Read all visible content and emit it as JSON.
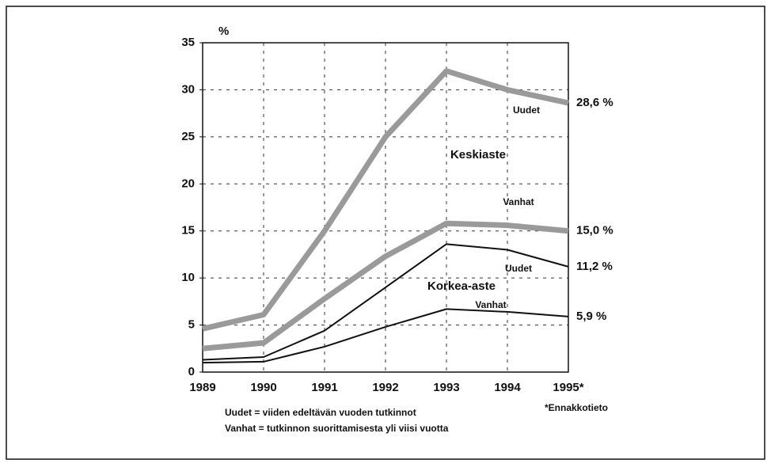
{
  "chart_data": {
    "type": "line",
    "y_unit": "%",
    "categories": [
      "1989",
      "1990",
      "1991",
      "1992",
      "1993",
      "1994",
      "1995*"
    ],
    "series": [
      {
        "name": "Uudet",
        "group": "Keskiaste",
        "color": "#9a9a9a",
        "values": [
          4.6,
          6.1,
          15,
          25,
          32,
          30,
          28.6
        ],
        "value_labels": [
          null,
          null,
          null,
          null,
          null,
          null,
          "28,6 %"
        ]
      },
      {
        "name": "Vanhat",
        "group": "Keskiaste",
        "color": "#9a9a9a",
        "values": [
          2.5,
          3.1,
          7.8,
          12.3,
          15.8,
          15.6,
          15.0
        ],
        "value_labels": [
          null,
          null,
          null,
          null,
          null,
          null,
          "15,0 %"
        ]
      },
      {
        "name": "Uudet",
        "group": "Korkea-aste",
        "color": "#111111",
        "values": [
          1.3,
          1.6,
          4.4,
          9,
          13.6,
          13,
          11.2
        ],
        "value_labels": [
          null,
          null,
          null,
          null,
          null,
          null,
          "11,2 %"
        ]
      },
      {
        "name": "Vanhat",
        "group": "Korkea-aste",
        "color": "#111111",
        "values": [
          1,
          1.1,
          2.7,
          4.8,
          6.7,
          6.4,
          5.9
        ],
        "value_labels": [
          null,
          null,
          null,
          null,
          null,
          null,
          "5,9 %"
        ]
      }
    ],
    "ylim": [
      0,
      35
    ],
    "yticks": [
      0,
      5,
      10,
      15,
      20,
      25,
      30,
      35
    ],
    "grid": true,
    "notes": [
      "Uudet = viiden edeltävän vuoden tutkinnot",
      "Vanhat = tutkinnon suorittamisesta yli viisi vuotta"
    ],
    "footnote": "*Ennakkotieto"
  }
}
